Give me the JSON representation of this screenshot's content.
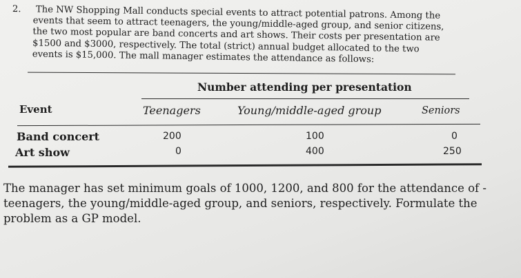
{
  "problem": {
    "number": "2.",
    "lines": [
      "The NW Shopping Mall conducts special events to attract potential patrons. Among the",
      "events that seem to attract teenagers, the young/middle-aged group, and senior citizens,",
      "the two most popular are band concerts and art shows. Their costs per presentation are",
      "$1500 and $3000, respectively. The total (strict) annual budget allocated to the two",
      "events is $15,000. The mall manager estimates the attendance as follows:"
    ]
  },
  "table": {
    "group_header": "Number attending per presentation",
    "columns": [
      "Event",
      "Teenagers",
      "Young/middle-aged group",
      "Seniors"
    ],
    "rows": [
      {
        "event": "Band concert",
        "teenagers": "200",
        "young": "100",
        "seniors": "0"
      },
      {
        "event": "Art show",
        "teenagers": "0",
        "young": "400",
        "seniors": "250"
      }
    ]
  },
  "closing": {
    "lines": [
      "The manager has set minimum goals of 1000, 1200, and 800 for the attendance of -",
      "teenagers, the young/middle-aged group, and seniors, respectively. Formulate the",
      "problem as a GP model."
    ]
  }
}
